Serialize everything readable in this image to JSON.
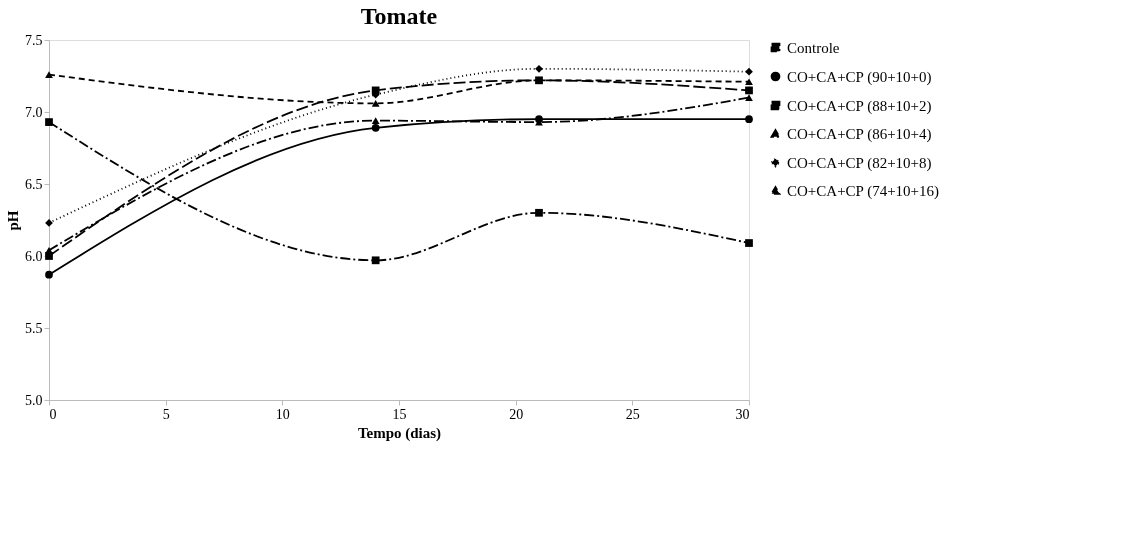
{
  "chart_data": {
    "type": "line",
    "title": "Tomate",
    "xlabel": "Tempo (dias)",
    "ylabel": "pH",
    "x": [
      0,
      14,
      21,
      30
    ],
    "xlim": [
      0,
      30
    ],
    "xticks": [
      0,
      5,
      10,
      15,
      20,
      25,
      30
    ],
    "ylim": [
      5.0,
      7.5
    ],
    "yticks": [
      {
        "value": 5.0,
        "label": "5.0"
      },
      {
        "value": 5.5,
        "label": "5.5"
      },
      {
        "value": 6.0,
        "label": "6.0"
      },
      {
        "value": 6.5,
        "label": "6.5"
      },
      {
        "value": 7.0,
        "label": "7.0"
      },
      {
        "value": 7.5,
        "label": "7.5"
      }
    ],
    "grid": false,
    "legend": "right",
    "series": [
      {
        "name": "Controle",
        "color": "#000000",
        "marker": "square",
        "line_style": "dashdot",
        "values": [
          6.93,
          5.97,
          6.3,
          6.09
        ]
      },
      {
        "name": "CO+CA+CP (90+10+0)",
        "color": "#000000",
        "marker": "circle",
        "line_style": "solid",
        "values": [
          5.87,
          6.89,
          6.95,
          6.95
        ]
      },
      {
        "name": "CO+CA+CP (88+10+2)",
        "color": "#000000",
        "marker": "square",
        "line_style": "longdash",
        "values": [
          6.0,
          7.15,
          7.22,
          7.15
        ]
      },
      {
        "name": "CO+CA+CP (86+10+4)",
        "color": "#000000",
        "marker": "triangle",
        "line_style": "dashdot",
        "values": [
          6.04,
          6.94,
          6.93,
          7.1
        ]
      },
      {
        "name": "CO+CA+CP (82+10+8)",
        "color": "#000000",
        "marker": "diamond",
        "line_style": "dotted",
        "values": [
          6.23,
          7.12,
          7.3,
          7.28
        ]
      },
      {
        "name": "CO+CA+CP (74+10+16)",
        "color": "#000000",
        "marker": "triangle",
        "line_style": "dashed",
        "values": [
          7.26,
          7.06,
          7.22,
          7.21
        ]
      }
    ]
  }
}
